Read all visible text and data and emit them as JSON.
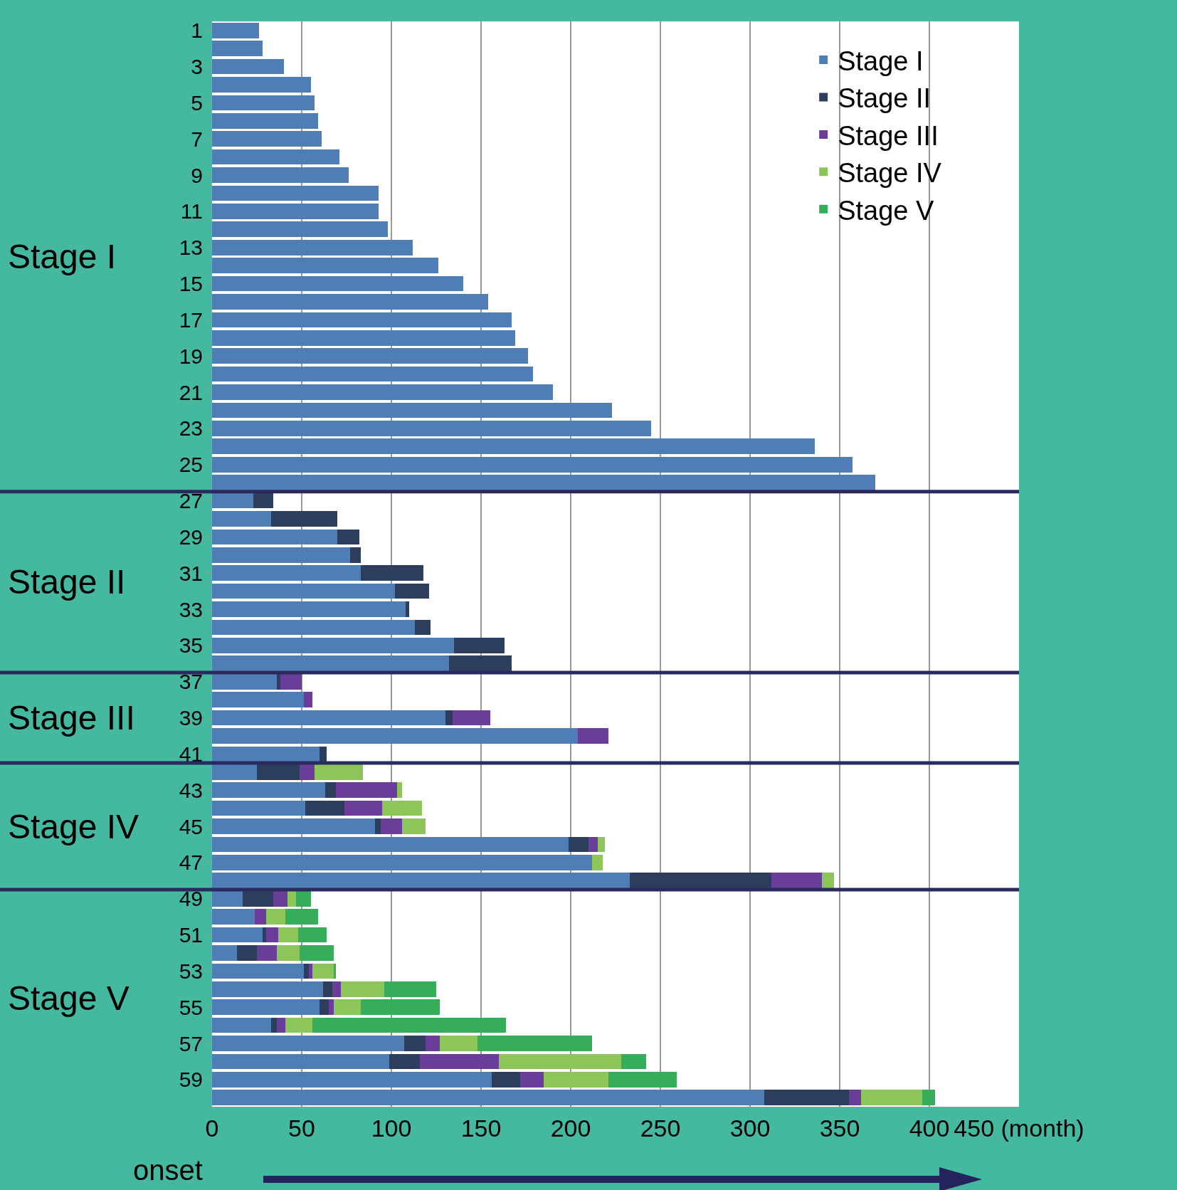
{
  "chart_data": {
    "type": "bar",
    "orientation": "horizontal",
    "stacked": true,
    "categories": [
      "1",
      null,
      "3",
      null,
      "5",
      null,
      "7",
      null,
      "9",
      null,
      "11",
      null,
      "13",
      null,
      "15",
      null,
      "17",
      null,
      "19",
      null,
      "21",
      null,
      "23",
      null,
      "25",
      null,
      "27",
      null,
      "29",
      null,
      "31",
      null,
      "33",
      null,
      "35",
      null,
      "37",
      null,
      "39",
      null,
      "41",
      null,
      "43",
      null,
      "45",
      null,
      "47",
      null,
      "49",
      null,
      "51",
      null,
      "53",
      null,
      "55",
      null,
      "57",
      null,
      "59",
      null
    ],
    "series": [
      {
        "name": "Stage I",
        "color": "#4f7db5",
        "values": [
          26,
          28,
          40,
          55,
          57,
          59,
          61,
          71,
          76,
          93,
          93,
          98,
          112,
          126,
          140,
          154,
          167,
          169,
          176,
          179,
          190,
          223,
          245,
          336,
          357,
          370,
          23,
          33,
          70,
          77,
          83,
          102,
          108,
          113,
          135,
          132,
          36,
          51,
          130,
          204,
          60,
          25,
          63,
          52,
          91,
          199,
          212,
          233,
          17,
          24,
          28,
          14,
          51,
          62,
          60,
          33,
          107,
          99,
          156,
          308
        ]
      },
      {
        "name": "Stage II",
        "color": "#2c3e5c",
        "values": [
          null,
          null,
          null,
          null,
          null,
          null,
          null,
          null,
          null,
          null,
          null,
          null,
          null,
          null,
          null,
          null,
          null,
          null,
          null,
          null,
          null,
          null,
          null,
          null,
          null,
          null,
          11,
          37,
          12,
          6,
          35,
          19,
          2,
          9,
          28,
          35,
          2,
          null,
          4,
          null,
          4,
          24,
          6,
          22,
          3,
          11,
          null,
          79,
          17,
          null,
          2,
          11,
          3,
          5,
          5,
          3,
          12,
          17,
          16,
          47
        ]
      },
      {
        "name": "Stage III",
        "color": "#6a3d9a",
        "values": [
          null,
          null,
          null,
          null,
          null,
          null,
          null,
          null,
          null,
          null,
          null,
          null,
          null,
          null,
          null,
          null,
          null,
          null,
          null,
          null,
          null,
          null,
          null,
          null,
          null,
          null,
          null,
          null,
          null,
          null,
          null,
          null,
          null,
          null,
          null,
          null,
          12,
          5,
          21,
          17,
          null,
          8,
          34,
          21,
          12,
          5,
          null,
          28,
          8,
          6,
          7,
          11,
          2,
          5,
          3,
          5,
          8,
          44,
          13,
          7
        ]
      },
      {
        "name": "Stage IV",
        "color": "#8cc65a",
        "values": [
          null,
          null,
          null,
          null,
          null,
          null,
          null,
          null,
          null,
          null,
          null,
          null,
          null,
          null,
          null,
          null,
          null,
          null,
          null,
          null,
          null,
          null,
          null,
          null,
          null,
          null,
          null,
          null,
          null,
          null,
          null,
          null,
          null,
          null,
          null,
          null,
          null,
          null,
          null,
          null,
          null,
          27,
          3,
          22,
          13,
          4,
          6,
          7,
          5,
          11,
          11,
          13,
          12,
          24,
          15,
          15,
          21,
          68,
          36,
          34
        ]
      },
      {
        "name": "Stage V",
        "color": "#35ad5a",
        "values": [
          null,
          null,
          null,
          null,
          null,
          null,
          null,
          null,
          null,
          null,
          null,
          null,
          null,
          null,
          null,
          null,
          null,
          null,
          null,
          null,
          null,
          null,
          null,
          null,
          null,
          null,
          null,
          null,
          null,
          null,
          null,
          null,
          null,
          null,
          null,
          null,
          null,
          null,
          null,
          null,
          null,
          null,
          null,
          null,
          null,
          null,
          null,
          null,
          8,
          18,
          16,
          19,
          1,
          29,
          44,
          108,
          64,
          14,
          38,
          7
        ]
      }
    ],
    "xlim": [
      0,
      450
    ],
    "xticks": [
      0,
      50,
      100,
      150,
      200,
      250,
      300,
      350,
      400,
      {
        "value": 450,
        "label": "450 (month)"
      }
    ],
    "grid": "x",
    "legend": "top right",
    "annotations": [
      "Stage I",
      "Stage II",
      "Stage III",
      "Stage IV",
      "Stage V",
      "onset"
    ]
  }
}
